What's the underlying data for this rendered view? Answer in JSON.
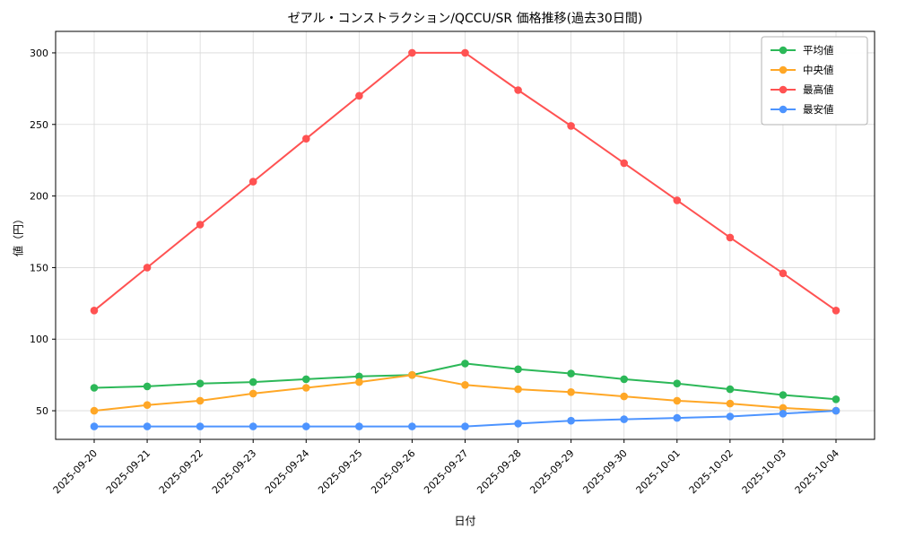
{
  "chart_data": {
    "type": "line",
    "title": "ゼアル・コンストラクション/QCCU/SR 価格推移(過去30日間)",
    "xlabel": "日付",
    "ylabel": "値（円）",
    "categories": [
      "2025-09-20",
      "2025-09-21",
      "2025-09-22",
      "2025-09-23",
      "2025-09-24",
      "2025-09-25",
      "2025-09-26",
      "2025-09-27",
      "2025-09-28",
      "2025-09-29",
      "2025-09-30",
      "2025-10-01",
      "2025-10-02",
      "2025-10-03",
      "2025-10-04"
    ],
    "series": [
      {
        "name": "平均値",
        "color": "#2cb858",
        "values": [
          66,
          67,
          69,
          70,
          72,
          74,
          75,
          83,
          79,
          76,
          72,
          69,
          65,
          61,
          58
        ]
      },
      {
        "name": "中央値",
        "color": "#ffa726",
        "values": [
          50,
          54,
          57,
          62,
          66,
          70,
          75,
          68,
          65,
          63,
          60,
          57,
          55,
          52,
          50
        ]
      },
      {
        "name": "最高値",
        "color": "#ff5252",
        "values": [
          120,
          150,
          180,
          210,
          240,
          270,
          300,
          300,
          274,
          249,
          223,
          197,
          171,
          146,
          120
        ]
      },
      {
        "name": "最安値",
        "color": "#4d94ff",
        "values": [
          39,
          39,
          39,
          39,
          39,
          39,
          39,
          39,
          41,
          43,
          44,
          45,
          46,
          48,
          50
        ]
      }
    ],
    "ylim": [
      30,
      315
    ],
    "yticks": [
      50,
      100,
      150,
      200,
      250,
      300
    ],
    "grid": true,
    "legend_position": "upper right",
    "frame_color": "#000000",
    "grid_color": "#d9d9d9"
  }
}
